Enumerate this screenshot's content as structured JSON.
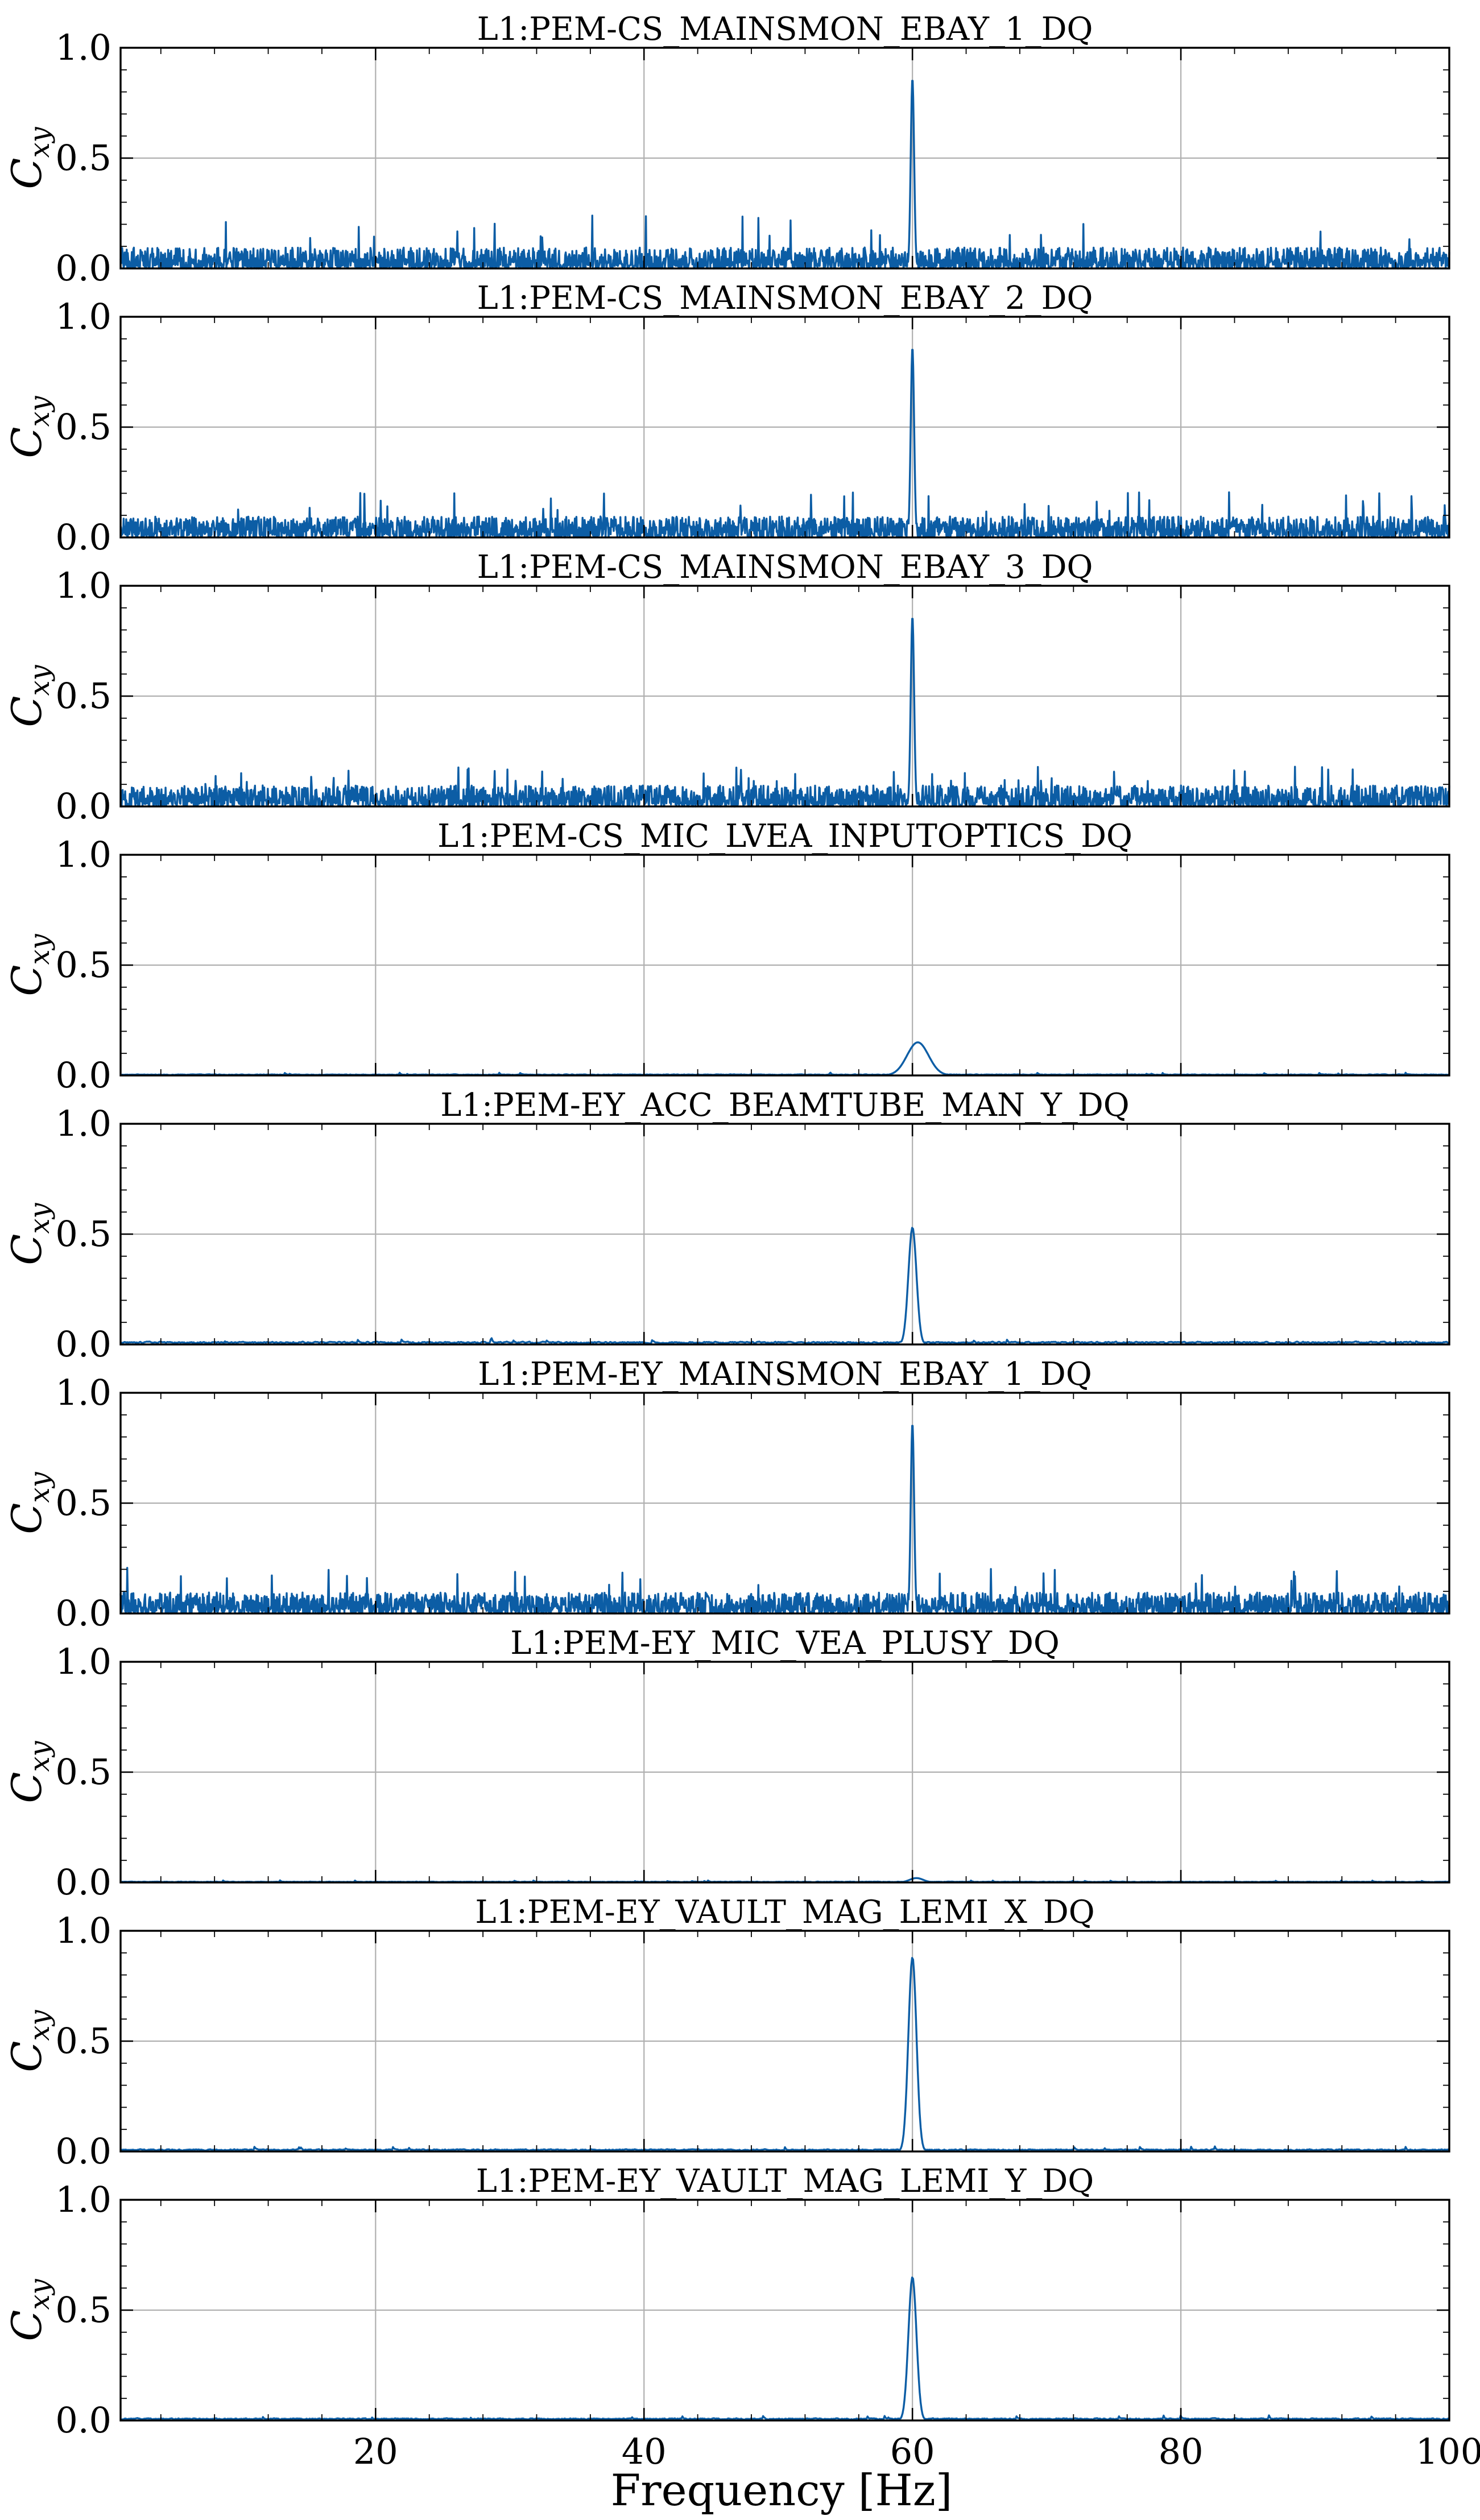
{
  "chart_data": {
    "type": "line",
    "layout": "stacked-subplots",
    "x": {
      "label": "Frequency [Hz]",
      "range": [
        1,
        100
      ],
      "ticks": [
        20,
        40,
        60,
        80,
        100
      ]
    },
    "y": {
      "label": "Cxy",
      "label_base": "C",
      "label_sub": "xy",
      "range": [
        0,
        1
      ],
      "ticks": [
        "0.0",
        "0.5",
        "1.0"
      ]
    },
    "grid": true,
    "line_color": "#0C5DA5",
    "panels": [
      {
        "title": "L1:PEM-CS_MAINSMON_EBAY_1_DQ",
        "type": "broadband",
        "peak_hz": 60,
        "peak_value": 0.86,
        "peak_width_hz": 0.25,
        "noise_level": 0.05,
        "noise_max": 0.24
      },
      {
        "title": "L1:PEM-CS_MAINSMON_EBAY_2_DQ",
        "type": "broadband",
        "peak_hz": 60,
        "peak_value": 0.86,
        "peak_width_hz": 0.25,
        "noise_level": 0.05,
        "noise_max": 0.21
      },
      {
        "title": "L1:PEM-CS_MAINSMON_EBAY_3_DQ",
        "type": "broadband",
        "peak_hz": 60,
        "peak_value": 0.86,
        "peak_width_hz": 0.25,
        "noise_level": 0.05,
        "noise_max": 0.18
      },
      {
        "title": "L1:PEM-CS_MIC_LVEA_INPUTOPTICS_DQ",
        "type": "smooth",
        "peak_hz": 60.4,
        "peak_value": 0.15,
        "peak_width_hz": 1.6,
        "noise_level": 0.004,
        "noise_max": 0.02
      },
      {
        "title": "L1:PEM-EY_ACC_BEAMTUBE_MAN_Y_DQ",
        "type": "smooth",
        "peak_hz": 60,
        "peak_value": 0.53,
        "peak_width_hz": 0.6,
        "noise_level": 0.01,
        "noise_max": 0.04
      },
      {
        "title": "L1:PEM-EY_MAINSMON_EBAY_1_DQ",
        "type": "broadband",
        "peak_hz": 60,
        "peak_value": 0.86,
        "peak_width_hz": 0.25,
        "noise_level": 0.05,
        "noise_max": 0.21
      },
      {
        "title": "L1:PEM-EY_MIC_VEA_PLUSY_DQ",
        "type": "smooth",
        "peak_hz": 60.3,
        "peak_value": 0.02,
        "peak_width_hz": 1.0,
        "noise_level": 0.003,
        "noise_max": 0.015
      },
      {
        "title": "L1:PEM-EY_VAULT_MAG_LEMI_X_DQ",
        "type": "smooth",
        "peak_hz": 60,
        "peak_value": 0.88,
        "peak_width_hz": 0.6,
        "noise_level": 0.008,
        "noise_max": 0.035
      },
      {
        "title": "L1:PEM-EY_VAULT_MAG_LEMI_Y_DQ",
        "type": "smooth",
        "peak_hz": 60,
        "peak_value": 0.65,
        "peak_width_hz": 0.6,
        "noise_level": 0.008,
        "noise_max": 0.035
      }
    ]
  }
}
